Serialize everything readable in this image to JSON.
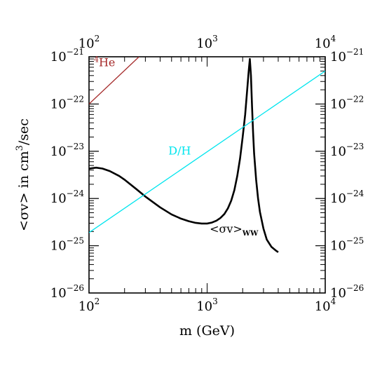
{
  "chart_data": {
    "type": "line",
    "xlabel": {
      "pre": "m (GeV)"
    },
    "ylabel": {
      "pre": "<σv> in cm",
      "sup": "3",
      "post": "/sec"
    },
    "x_scale": "log",
    "y_scale": "log",
    "xlim": [
      100,
      10000
    ],
    "ylim": [
      1e-26,
      1e-21
    ],
    "x_ticks": [
      {
        "value": 100,
        "base": "10",
        "exp": "2"
      },
      {
        "value": 1000,
        "base": "10",
        "exp": "3"
      },
      {
        "value": 10000,
        "base": "10",
        "exp": "4"
      }
    ],
    "y_ticks": [
      {
        "value": 1e-21,
        "base": "10",
        "exp": "−21"
      },
      {
        "value": 1e-22,
        "base": "10",
        "exp": "−22"
      },
      {
        "value": 1e-23,
        "base": "10",
        "exp": "−23"
      },
      {
        "value": 1e-24,
        "base": "10",
        "exp": "−24"
      },
      {
        "value": 1e-25,
        "base": "10",
        "exp": "−25"
      },
      {
        "value": 1e-26,
        "base": "10",
        "exp": "−26"
      }
    ],
    "grid": false,
    "series": [
      {
        "key": "ww",
        "label_main": "<σv>",
        "label_sub": "WW",
        "color": "#000000",
        "x": [
          100,
          115,
          130,
          150,
          180,
          200,
          250,
          300,
          350,
          400,
          500,
          600,
          700,
          800,
          900,
          1000,
          1100,
          1200,
          1300,
          1400,
          1500,
          1600,
          1700,
          1800,
          1900,
          2000,
          2100,
          2200,
          2250,
          2300,
          2350,
          2400,
          2450,
          2500,
          2600,
          2700,
          2800,
          3000,
          3200,
          3500,
          3800,
          4000
        ],
        "y": [
          4.3e-24,
          4.5e-24,
          4.3e-24,
          3.8e-24,
          3e-24,
          2.5e-24,
          1.6e-24,
          1.1e-24,
          8.3e-25,
          6.5e-25,
          4.6e-25,
          3.75e-25,
          3.3e-25,
          3.05e-25,
          2.95e-25,
          2.95e-25,
          3.1e-25,
          3.4e-25,
          3.9e-25,
          4.7e-25,
          6.2e-25,
          9e-25,
          1.5e-24,
          3e-24,
          7e-24,
          2e-23,
          6e-23,
          2.5e-22,
          5e-22,
          9e-22,
          4e-22,
          9e-23,
          2.5e-23,
          9e-24,
          2.5e-24,
          1e-24,
          5.2e-25,
          2.3e-25,
          1.35e-25,
          9.5e-26,
          8e-26,
          7.3e-26
        ]
      },
      {
        "key": "dh",
        "label_main": "D/H",
        "color": "#00e5ee",
        "x": [
          100,
          10000
        ],
        "y": [
          1.9e-25,
          5e-22
        ]
      },
      {
        "key": "he4",
        "label_sup": "4",
        "label_main": "He",
        "color": "#a52a2a",
        "x": [
          100,
          265
        ],
        "y": [
          1e-22,
          1e-21
        ]
      }
    ]
  }
}
